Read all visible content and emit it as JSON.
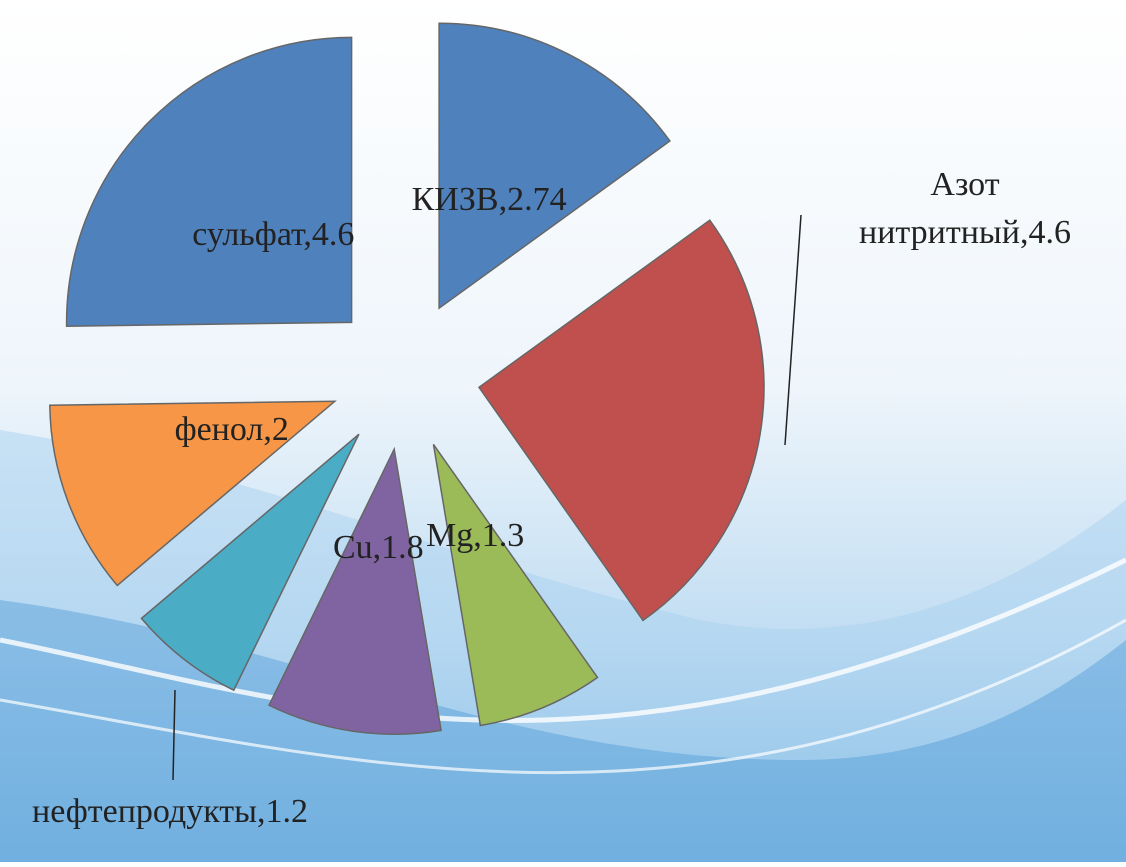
{
  "chart_data": {
    "type": "pie",
    "values": [
      2.74,
      4.6,
      1.3,
      1.8,
      1.2,
      2,
      4.6
    ],
    "value_labels": [
      "КИЗВ,2.74",
      "Азот нитритный,4.6",
      "Mg,1.3",
      "Cu,1.8",
      "нефтепродукты,1.2",
      "фенол,2",
      "сульфат,4.6"
    ],
    "colors": [
      "#4f81bd",
      "#c0504d",
      "#9bbb59",
      "#8064a2",
      "#4bacc6",
      "#f79646",
      "#4f81bd"
    ]
  }
}
